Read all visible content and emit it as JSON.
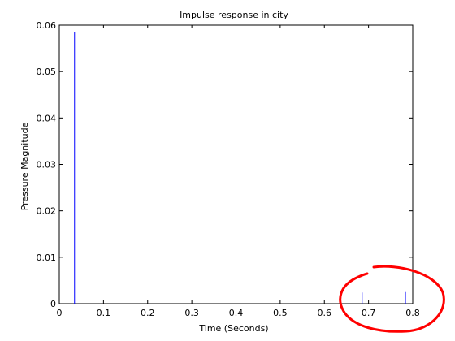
{
  "chart_data": {
    "type": "line",
    "title": "Impulse response in city",
    "xlabel": "Time (Seconds)",
    "ylabel": "Pressure Magnitude",
    "xlim": [
      0,
      0.8
    ],
    "ylim": [
      0,
      0.06
    ],
    "x_ticks": [
      "0",
      "0.1",
      "0.2",
      "0.3",
      "0.4",
      "0.5",
      "0.6",
      "0.7",
      "0.8"
    ],
    "y_ticks": [
      "0",
      "0.01",
      "0.02",
      "0.03",
      "0.04",
      "0.05",
      "0.06"
    ],
    "grid": false,
    "series": [
      {
        "color": "#0000ff",
        "impulses": [
          {
            "x": 0.0345,
            "y": 0.0585
          },
          {
            "x": 0.6855,
            "y": 0.0024
          },
          {
            "x": 0.7835,
            "y": 0.0025
          }
        ]
      }
    ]
  },
  "annotation": {
    "type": "hand-drawn circle",
    "color": "#ff0000",
    "target": "small impulses near 0.7–0.8 s"
  }
}
